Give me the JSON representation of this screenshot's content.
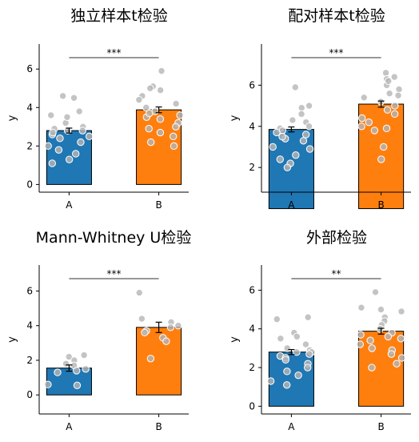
{
  "chart_data": [
    {
      "type": "bar",
      "title": "独立样本t检验",
      "xlabel": "",
      "ylabel": "y",
      "categories": [
        "A",
        "B"
      ],
      "values": [
        2.8,
        3.88
      ],
      "error": [
        0.13,
        0.15
      ],
      "colors": [
        "#1f77b4",
        "#ff7f0e"
      ],
      "ylim": [
        -0.4,
        7.3
      ],
      "yticks": [
        0,
        2,
        4,
        6
      ],
      "significance": "***",
      "points": [
        [
          3.8,
          3.6,
          3.2,
          3.0,
          2.9,
          2.8,
          2.6,
          2.5,
          2.4,
          2.2,
          2.0,
          1.8,
          1.6,
          1.3,
          1.1,
          4.6,
          4.5,
          3.5,
          2.8,
          2.7
        ],
        [
          5.9,
          5.1,
          5.0,
          4.9,
          4.6,
          4.4,
          4.2,
          4.0,
          3.8,
          3.6,
          3.5,
          3.4,
          3.2,
          3.0,
          2.9,
          2.7,
          2.5,
          2.2,
          2.0,
          3.7
        ]
      ]
    },
    {
      "type": "bar",
      "title": "配对样本t检验",
      "xlabel": "",
      "ylabel": "y",
      "categories": [
        "A",
        "B"
      ],
      "values": [
        3.85,
        5.08
      ],
      "error": [
        0.12,
        0.15
      ],
      "colors": [
        "#1f77b4",
        "#ff7f0e"
      ],
      "ylim": [
        0.8,
        8.0
      ],
      "yticks": [
        2,
        4,
        6
      ],
      "significance": "***",
      "points": [
        [
          5.9,
          5.0,
          4.9,
          4.6,
          4.3,
          4.2,
          4.0,
          3.9,
          3.8,
          3.6,
          3.4,
          3.3,
          3.0,
          2.9,
          2.6,
          2.4,
          2.2,
          2.0,
          3.7,
          3.5
        ],
        [
          6.6,
          6.4,
          6.3,
          6.0,
          5.8,
          5.6,
          5.4,
          5.2,
          5.0,
          4.8,
          4.6,
          4.4,
          4.2,
          4.0,
          3.9,
          3.8,
          3.0,
          2.4,
          5.5,
          6.2
        ]
      ]
    },
    {
      "type": "bar",
      "title": "Mann-Whitney U检验",
      "xlabel": "",
      "ylabel": "y",
      "categories": [
        "A",
        "B"
      ],
      "values": [
        1.55,
        3.9
      ],
      "error": [
        0.18,
        0.3
      ],
      "colors": [
        "#1f77b4",
        "#ff7f0e"
      ],
      "ylim": [
        -1.1,
        7.5
      ],
      "yticks": [
        0,
        2,
        4,
        6
      ],
      "significance": "***",
      "points": [
        [
          2.3,
          2.2,
          2.0,
          1.8,
          1.7,
          1.5,
          1.4,
          1.3,
          0.6,
          0.55
        ],
        [
          5.9,
          4.4,
          4.2,
          4.0,
          3.9,
          3.7,
          3.6,
          3.3,
          3.1,
          2.1
        ]
      ]
    },
    {
      "type": "bar",
      "title": "外部检验",
      "xlabel": "",
      "ylabel": "y",
      "categories": [
        "A",
        "B"
      ],
      "values": [
        2.8,
        3.88
      ],
      "error": [
        0.13,
        0.15
      ],
      "colors": [
        "#1f77b4",
        "#ff7f0e"
      ],
      "ylim": [
        -0.4,
        7.3
      ],
      "yticks": [
        0,
        2,
        4,
        6
      ],
      "significance": "**",
      "points": [
        [
          3.8,
          3.6,
          3.2,
          3.0,
          2.9,
          2.8,
          2.6,
          2.5,
          2.4,
          2.2,
          2.0,
          1.8,
          1.6,
          1.3,
          1.1,
          4.6,
          4.5,
          3.5,
          2.8,
          2.7
        ],
        [
          5.9,
          5.1,
          5.0,
          4.9,
          4.6,
          4.4,
          4.2,
          4.0,
          3.8,
          3.6,
          3.5,
          3.4,
          3.2,
          3.0,
          2.9,
          2.7,
          2.5,
          2.2,
          2.0,
          3.7
        ]
      ]
    }
  ]
}
